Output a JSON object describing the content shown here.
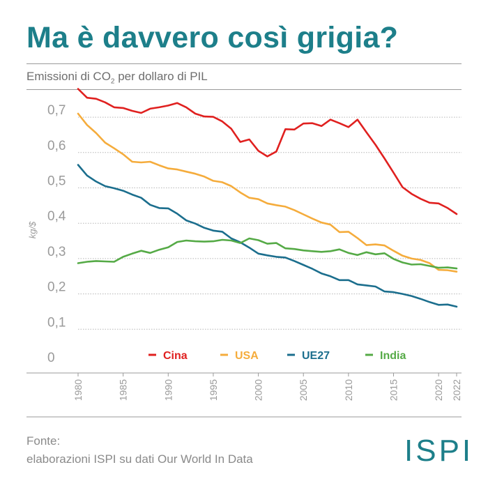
{
  "header": {
    "title": "Ma è davvero così grigia?",
    "subtitle_pre": "Emissioni di CO",
    "subtitle_sub": "2",
    "subtitle_post": " per dollaro di PIL"
  },
  "footer": {
    "source_label": "Fonte:",
    "source_text": "elaborazioni ISPI su dati Our World In Data",
    "logo": "ISPI"
  },
  "colors": {
    "title": "#1d7f8a",
    "grid": "#b5b5b5",
    "axis_text": "#9a9a9a"
  },
  "chart_data": {
    "type": "line",
    "title": "Emissioni di CO2 per dollaro di PIL",
    "xlabel": "",
    "ylabel": "kg/$",
    "ylim": [
      0,
      0.78
    ],
    "xlim": [
      1980,
      2022
    ],
    "y_ticks": [
      0,
      0.1,
      0.2,
      0.3,
      0.4,
      0.5,
      0.6,
      0.7
    ],
    "y_tick_labels": [
      "0",
      "0,1",
      "0,2",
      "0,3",
      "0,4",
      "0,5",
      "0,6",
      "0,7"
    ],
    "x_ticks": [
      1980,
      1985,
      1990,
      1995,
      2000,
      2005,
      2010,
      2015,
      2020,
      2022
    ],
    "x_tick_labels": [
      "1980",
      "1985",
      "1990",
      "1995",
      "2000",
      "2005",
      "2010",
      "2015",
      "2020",
      "2022"
    ],
    "legend_position": "bottom-center",
    "x": [
      1980,
      1981,
      1982,
      1983,
      1984,
      1985,
      1986,
      1987,
      1988,
      1989,
      1990,
      1991,
      1992,
      1993,
      1994,
      1995,
      1996,
      1997,
      1998,
      1999,
      2000,
      2001,
      2002,
      2003,
      2004,
      2005,
      2006,
      2007,
      2008,
      2009,
      2010,
      2011,
      2012,
      2013,
      2014,
      2015,
      2016,
      2017,
      2018,
      2019,
      2020,
      2021,
      2022
    ],
    "series": [
      {
        "name": "Cina",
        "color": "#e0201f",
        "values": [
          0.78,
          0.755,
          0.752,
          0.742,
          0.728,
          0.726,
          0.718,
          0.712,
          0.724,
          0.728,
          0.733,
          0.74,
          0.728,
          0.71,
          0.702,
          0.701,
          0.688,
          0.667,
          0.63,
          0.637,
          0.605,
          0.589,
          0.603,
          0.666,
          0.665,
          0.682,
          0.683,
          0.675,
          0.693,
          0.683,
          0.672,
          0.693,
          0.657,
          0.622,
          0.583,
          0.543,
          0.502,
          0.483,
          0.469,
          0.458,
          0.456,
          0.443,
          0.426
        ]
      },
      {
        "name": "USA",
        "color": "#f5ac3c",
        "values": [
          0.71,
          0.678,
          0.655,
          0.628,
          0.612,
          0.595,
          0.574,
          0.572,
          0.574,
          0.564,
          0.555,
          0.552,
          0.546,
          0.54,
          0.532,
          0.52,
          0.516,
          0.505,
          0.487,
          0.472,
          0.468,
          0.456,
          0.451,
          0.447,
          0.437,
          0.425,
          0.413,
          0.402,
          0.396,
          0.375,
          0.376,
          0.358,
          0.338,
          0.34,
          0.337,
          0.322,
          0.308,
          0.3,
          0.296,
          0.287,
          0.268,
          0.267,
          0.263
        ]
      },
      {
        "name": "UE27",
        "color": "#1b6e8d",
        "values": [
          0.565,
          0.535,
          0.518,
          0.505,
          0.499,
          0.492,
          0.481,
          0.472,
          0.452,
          0.443,
          0.442,
          0.427,
          0.408,
          0.399,
          0.387,
          0.379,
          0.376,
          0.357,
          0.346,
          0.331,
          0.314,
          0.309,
          0.305,
          0.303,
          0.293,
          0.282,
          0.271,
          0.258,
          0.25,
          0.239,
          0.239,
          0.227,
          0.224,
          0.221,
          0.207,
          0.205,
          0.2,
          0.194,
          0.186,
          0.177,
          0.169,
          0.17,
          0.164
        ]
      },
      {
        "name": "India",
        "color": "#55aa46",
        "values": [
          0.287,
          0.291,
          0.293,
          0.292,
          0.291,
          0.305,
          0.314,
          0.322,
          0.316,
          0.325,
          0.332,
          0.347,
          0.351,
          0.349,
          0.348,
          0.349,
          0.353,
          0.351,
          0.344,
          0.357,
          0.352,
          0.342,
          0.344,
          0.329,
          0.327,
          0.323,
          0.321,
          0.319,
          0.321,
          0.326,
          0.316,
          0.31,
          0.318,
          0.312,
          0.315,
          0.299,
          0.289,
          0.283,
          0.284,
          0.279,
          0.274,
          0.275,
          0.272
        ]
      }
    ]
  }
}
